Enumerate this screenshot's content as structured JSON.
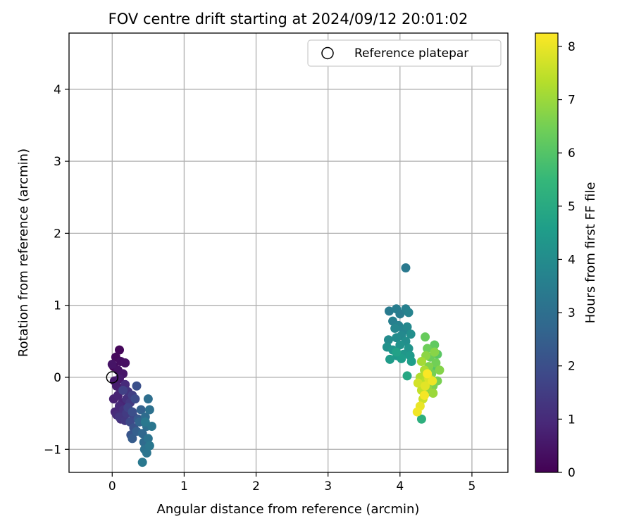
{
  "chart_data": {
    "type": "scatter",
    "title": "FOV centre drift starting at 2024/09/12 20:01:02",
    "xlabel": "Angular distance from reference (arcmin)",
    "ylabel": "Rotation from reference (arcmin)",
    "xlim": [
      -0.6,
      5.5
    ],
    "ylim": [
      -1.32,
      4.78
    ],
    "xticks": [
      0,
      1,
      2,
      3,
      4,
      5
    ],
    "yticks": [
      -1,
      0,
      1,
      2,
      3,
      4
    ],
    "xtick_labels": [
      "0",
      "1",
      "2",
      "3",
      "4",
      "5"
    ],
    "ytick_labels": [
      "−1",
      "0",
      "1",
      "2",
      "3",
      "4"
    ],
    "grid": true,
    "legend": {
      "position": "top-right",
      "entries": [
        "Reference platepar"
      ]
    },
    "reference_point": {
      "x": 0,
      "y": 0,
      "marker": "open-circle",
      "color": "#000000"
    },
    "colorbar": {
      "label": "Hours from first FF file",
      "range": [
        0,
        8.25
      ],
      "ticks": [
        0,
        1,
        2,
        3,
        4,
        5,
        6,
        7,
        8
      ],
      "tick_labels": [
        "0",
        "1",
        "2",
        "3",
        "4",
        "5",
        "6",
        "7",
        "8"
      ],
      "colormap": "viridis",
      "stops": [
        "#440154",
        "#482878",
        "#3e4989",
        "#31688e",
        "#26828e",
        "#1f9e89",
        "#35b779",
        "#6ece58",
        "#b5de2b",
        "#fde725"
      ]
    },
    "series": [
      {
        "points": [
          [
            0.02,
            0.15,
            0.05
          ],
          [
            0.1,
            0.38,
            0.15
          ],
          [
            0.05,
            0.28,
            0.2
          ],
          [
            0.12,
            0.22,
            0.3
          ],
          [
            0.18,
            0.2,
            0.35
          ],
          [
            0.08,
            0.1,
            0.4
          ],
          [
            0.0,
            0.18,
            0.45
          ],
          [
            0.15,
            0.05,
            0.5
          ],
          [
            0.03,
            -0.05,
            0.55
          ],
          [
            0.1,
            -0.02,
            0.6
          ],
          [
            0.06,
            -0.12,
            0.65
          ],
          [
            0.12,
            -0.18,
            0.7
          ],
          [
            0.02,
            -0.3,
            0.75
          ],
          [
            0.08,
            -0.25,
            0.8
          ],
          [
            0.14,
            -0.35,
            0.85
          ],
          [
            0.04,
            -0.48,
            0.9
          ],
          [
            0.1,
            -0.4,
            0.95
          ],
          [
            0.18,
            -0.1,
            1.0
          ],
          [
            0.06,
            -0.52,
            1.05
          ],
          [
            0.12,
            -0.58,
            1.1
          ],
          [
            0.2,
            -0.3,
            1.15
          ],
          [
            0.16,
            -0.45,
            1.2
          ],
          [
            0.22,
            -0.2,
            1.25
          ],
          [
            0.1,
            -0.55,
            1.3
          ],
          [
            0.18,
            -0.6,
            1.35
          ],
          [
            0.25,
            -0.35,
            1.4
          ],
          [
            0.2,
            -0.5,
            1.45
          ],
          [
            0.28,
            -0.25,
            1.55
          ],
          [
            0.15,
            -0.18,
            1.6
          ],
          [
            0.22,
            -0.42,
            1.65
          ],
          [
            0.3,
            -0.55,
            1.75
          ],
          [
            0.25,
            -0.62,
            1.85
          ],
          [
            0.32,
            -0.3,
            1.9
          ],
          [
            0.28,
            -0.48,
            2.0
          ],
          [
            0.34,
            -0.12,
            2.05
          ],
          [
            0.3,
            -0.7,
            2.1
          ],
          [
            0.26,
            -0.8,
            2.2
          ],
          [
            0.36,
            -0.58,
            2.3
          ],
          [
            0.28,
            -0.85,
            2.4
          ],
          [
            0.34,
            -0.75,
            2.5
          ],
          [
            0.4,
            -0.45,
            2.55
          ],
          [
            0.38,
            -0.62,
            2.65
          ],
          [
            0.42,
            -0.78,
            2.75
          ],
          [
            0.44,
            -0.9,
            2.85
          ],
          [
            0.46,
            -0.55,
            2.9
          ],
          [
            0.48,
            -0.68,
            2.95
          ],
          [
            0.5,
            -0.3,
            3.0
          ],
          [
            0.52,
            -0.45,
            3.05
          ],
          [
            0.45,
            -1.0,
            3.1
          ],
          [
            0.5,
            -0.85,
            3.15
          ],
          [
            0.48,
            -1.05,
            3.2
          ],
          [
            0.55,
            -0.68,
            3.25
          ],
          [
            0.52,
            -0.95,
            3.28
          ],
          [
            0.42,
            -1.18,
            3.3
          ],
          [
            0.46,
            -0.62,
            3.32
          ],
          [
            4.08,
            1.52,
            3.35
          ],
          [
            3.85,
            0.92,
            3.4
          ],
          [
            3.95,
            0.95,
            3.5
          ],
          [
            3.9,
            0.78,
            3.55
          ],
          [
            4.0,
            0.88,
            3.45
          ],
          [
            4.08,
            0.95,
            3.6
          ],
          [
            4.12,
            0.9,
            3.7
          ],
          [
            3.98,
            0.72,
            3.65
          ],
          [
            4.05,
            0.65,
            3.75
          ],
          [
            3.93,
            0.68,
            3.8
          ],
          [
            4.1,
            0.7,
            3.85
          ],
          [
            4.02,
            0.58,
            3.9
          ],
          [
            3.84,
            0.52,
            3.95
          ],
          [
            3.95,
            0.55,
            4.0
          ],
          [
            4.08,
            0.5,
            4.05
          ],
          [
            4.15,
            0.6,
            4.1
          ],
          [
            3.82,
            0.42,
            4.15
          ],
          [
            4.0,
            0.45,
            4.2
          ],
          [
            4.12,
            0.4,
            4.25
          ],
          [
            3.9,
            0.38,
            4.3
          ],
          [
            4.05,
            0.32,
            4.35
          ],
          [
            3.96,
            0.3,
            4.4
          ],
          [
            4.14,
            0.3,
            4.45
          ],
          [
            3.86,
            0.25,
            4.5
          ],
          [
            4.02,
            0.26,
            4.55
          ],
          [
            4.16,
            0.22,
            4.6
          ],
          [
            3.95,
            0.35,
            4.7
          ],
          [
            4.1,
            0.02,
            4.9
          ],
          [
            4.3,
            -0.58,
            5.2
          ],
          [
            4.4,
            -0.2,
            5.6
          ],
          [
            4.45,
            0.1,
            6.0
          ],
          [
            4.52,
            0.32,
            6.1
          ],
          [
            4.48,
            0.45,
            6.2
          ],
          [
            4.35,
            0.56,
            6.3
          ],
          [
            4.42,
            0.28,
            6.35
          ],
          [
            4.38,
            0.4,
            6.4
          ],
          [
            4.5,
            0.2,
            6.45
          ],
          [
            4.44,
            0.05,
            6.5
          ],
          [
            4.52,
            -0.05,
            6.55
          ],
          [
            4.46,
            -0.12,
            6.6
          ],
          [
            4.4,
            0.15,
            6.65
          ],
          [
            4.55,
            0.1,
            6.7
          ],
          [
            4.48,
            0.35,
            6.75
          ],
          [
            4.36,
            0.3,
            6.8
          ],
          [
            4.42,
            -0.02,
            6.85
          ],
          [
            4.38,
            -0.15,
            6.9
          ],
          [
            4.46,
            -0.22,
            7.0
          ],
          [
            4.3,
            0.22,
            7.1
          ],
          [
            4.34,
            0.1,
            7.2
          ],
          [
            4.28,
            0.0,
            7.3
          ],
          [
            4.36,
            -0.05,
            7.4
          ],
          [
            4.3,
            -0.18,
            7.5
          ],
          [
            4.32,
            -0.3,
            7.6
          ],
          [
            4.25,
            -0.08,
            7.7
          ],
          [
            4.4,
            -0.02,
            7.8
          ],
          [
            4.35,
            -0.12,
            7.9
          ],
          [
            4.28,
            -0.4,
            8.0
          ],
          [
            4.45,
            -0.05,
            8.05
          ],
          [
            4.24,
            -0.48,
            8.1
          ],
          [
            4.34,
            -0.25,
            8.15
          ],
          [
            4.38,
            0.05,
            8.2
          ]
        ]
      }
    ]
  }
}
